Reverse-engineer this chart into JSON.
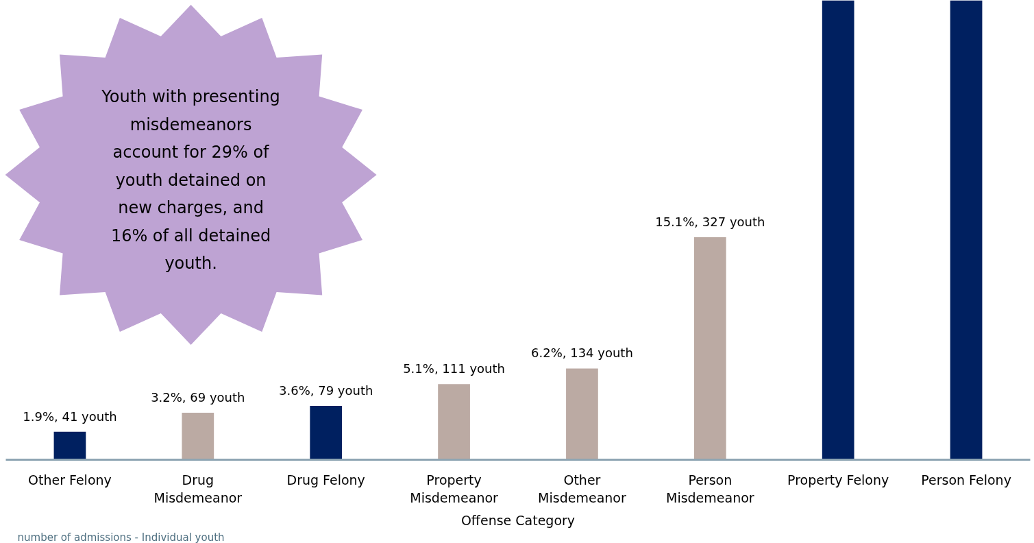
{
  "chart_data": {
    "type": "bar",
    "xlabel": "Offense Category",
    "categories": [
      "Other Felony",
      "Drug Misdemeanor",
      "Drug Felony",
      "Property Misdemeanor",
      "Other Misdemeanor",
      "Person Misdemeanor",
      "Property Felony",
      "Person Felony"
    ],
    "values": [
      41,
      69,
      79,
      111,
      134,
      327,
      675,
      675
    ],
    "colors": [
      "#002060",
      "#bbaaa3",
      "#002060",
      "#bbaaa3",
      "#bbaaa3",
      "#bbaaa3",
      "#002060",
      "#002060"
    ],
    "value_labels": [
      "1.9%, 41 youth",
      "3.2%, 69 youth",
      "3.6%, 79 youth",
      "5.1%, 111 youth",
      "6.2%, 134 youth",
      "15.1%, 327 youth",
      null,
      null
    ],
    "ylim": [
      0,
      675
    ],
    "tick_labels": "x",
    "annotations": [
      "Youth with presenting misdemeanors account for 29% of youth detained on new charges, and 16% of all detained youth.",
      "number of admissions - Individual youth"
    ]
  }
}
